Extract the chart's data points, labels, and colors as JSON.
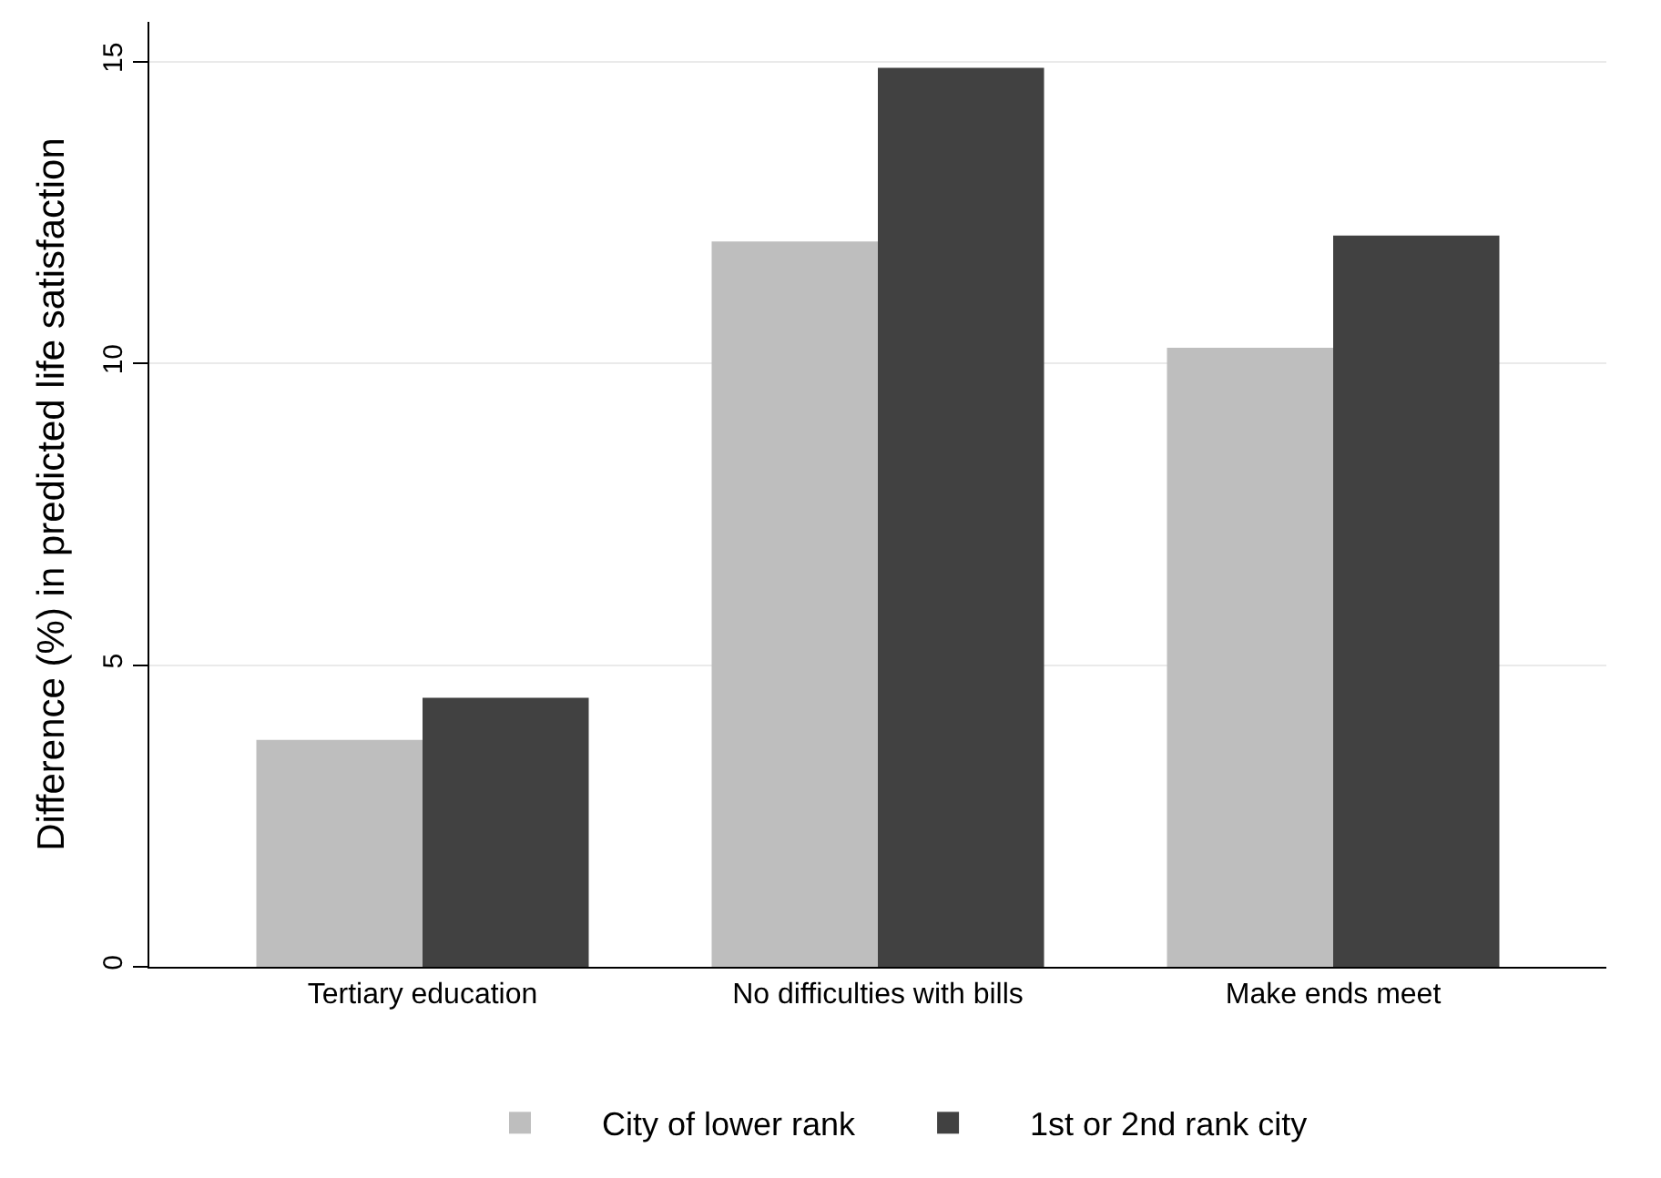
{
  "chart_data": {
    "type": "bar",
    "ylabel": "Difference (%) in predicted life satisfaction",
    "categories": [
      "Tertiary education",
      "No difficulties with bills",
      "Make ends meet"
    ],
    "series": [
      {
        "name": "City of lower rank",
        "color": "#bebebe",
        "values": [
          3.76,
          12.02,
          10.26
        ]
      },
      {
        "name": "1st or 2nd rank city",
        "color": "#414141",
        "values": [
          4.46,
          14.9,
          12.12
        ]
      }
    ],
    "ylim": [
      0,
      15.66
    ],
    "yticks": [
      0,
      5,
      10,
      15
    ],
    "grid": "y",
    "legend": "bottom"
  }
}
